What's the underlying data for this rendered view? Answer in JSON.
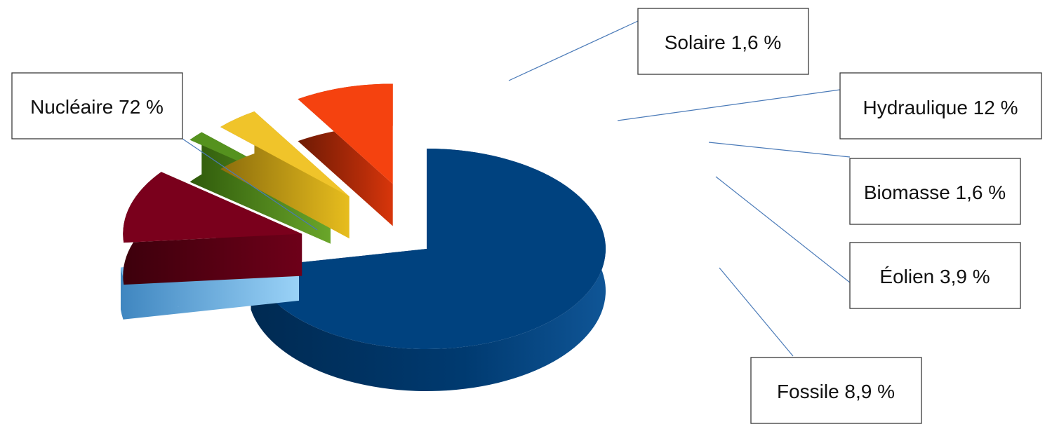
{
  "chart_data": {
    "type": "pie",
    "variant": "3d-exploded",
    "title": "",
    "legend": "none",
    "slices": [
      {
        "name": "Nucléaire",
        "value": 72,
        "label": "Nucléaire 72 %",
        "color": "#00427f",
        "explode": false
      },
      {
        "name": "Solaire",
        "value": 1.6,
        "label": "Solaire 1,6 %",
        "color": "#7ec3f2",
        "explode": true
      },
      {
        "name": "Hydraulique",
        "value": 12,
        "label": "Hydraulique 12 %",
        "color": "#7a001c",
        "explode": true
      },
      {
        "name": "Biomasse",
        "value": 1.6,
        "label": "Biomasse 1,6 %",
        "color": "#55921e",
        "explode": true
      },
      {
        "name": "Éolien",
        "value": 3.9,
        "label": "Éolien 3,9 %",
        "color": "#f0c42a",
        "explode": true
      },
      {
        "name": "Fossile",
        "value": 8.9,
        "label": "Fossile 8,9 %",
        "color": "#f5420f",
        "explode": true
      }
    ]
  }
}
